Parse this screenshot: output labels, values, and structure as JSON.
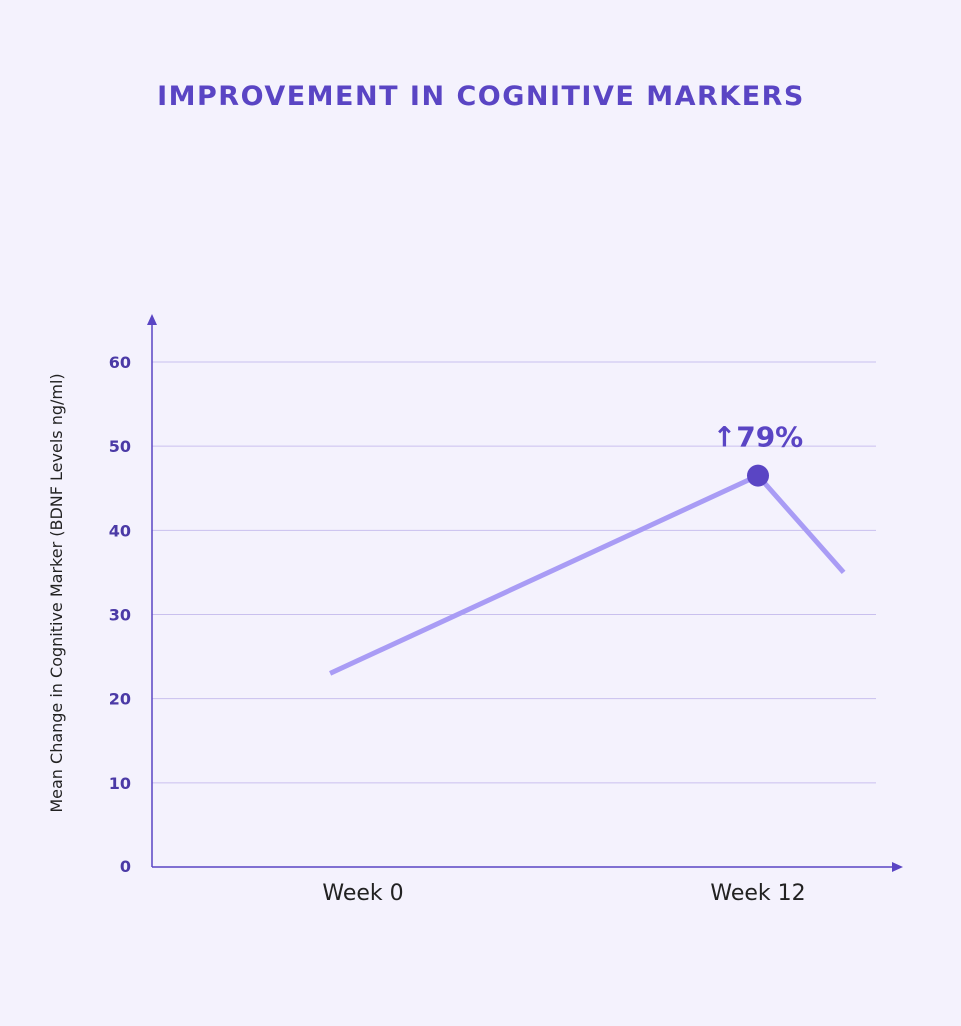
{
  "chart_data": {
    "type": "line",
    "title": "IMPROVEMENT IN COGNITIVE MARKERS",
    "xlabel": "",
    "ylabel": "Mean Change in Cognitive Marker (BDNF Levels ng/ml)",
    "categories": [
      "Week 0",
      "Week 12"
    ],
    "y_ticks": [
      "0",
      "10",
      "20",
      "30",
      "40",
      "50",
      "60"
    ],
    "ylim": [
      0,
      60
    ],
    "grid": true,
    "line_color": "#a99cf5",
    "marker_color": "#5a45c4",
    "axis_color": "#5a45c4",
    "series": [
      {
        "points": [
          {
            "x": -1.0,
            "y": 23
          },
          {
            "x": 12.0,
            "y": 46.5
          },
          {
            "x": 14.6,
            "y": 35
          }
        ]
      }
    ],
    "highlight": {
      "x": 12.0,
      "y": 46.5,
      "label": "↑79%"
    }
  }
}
